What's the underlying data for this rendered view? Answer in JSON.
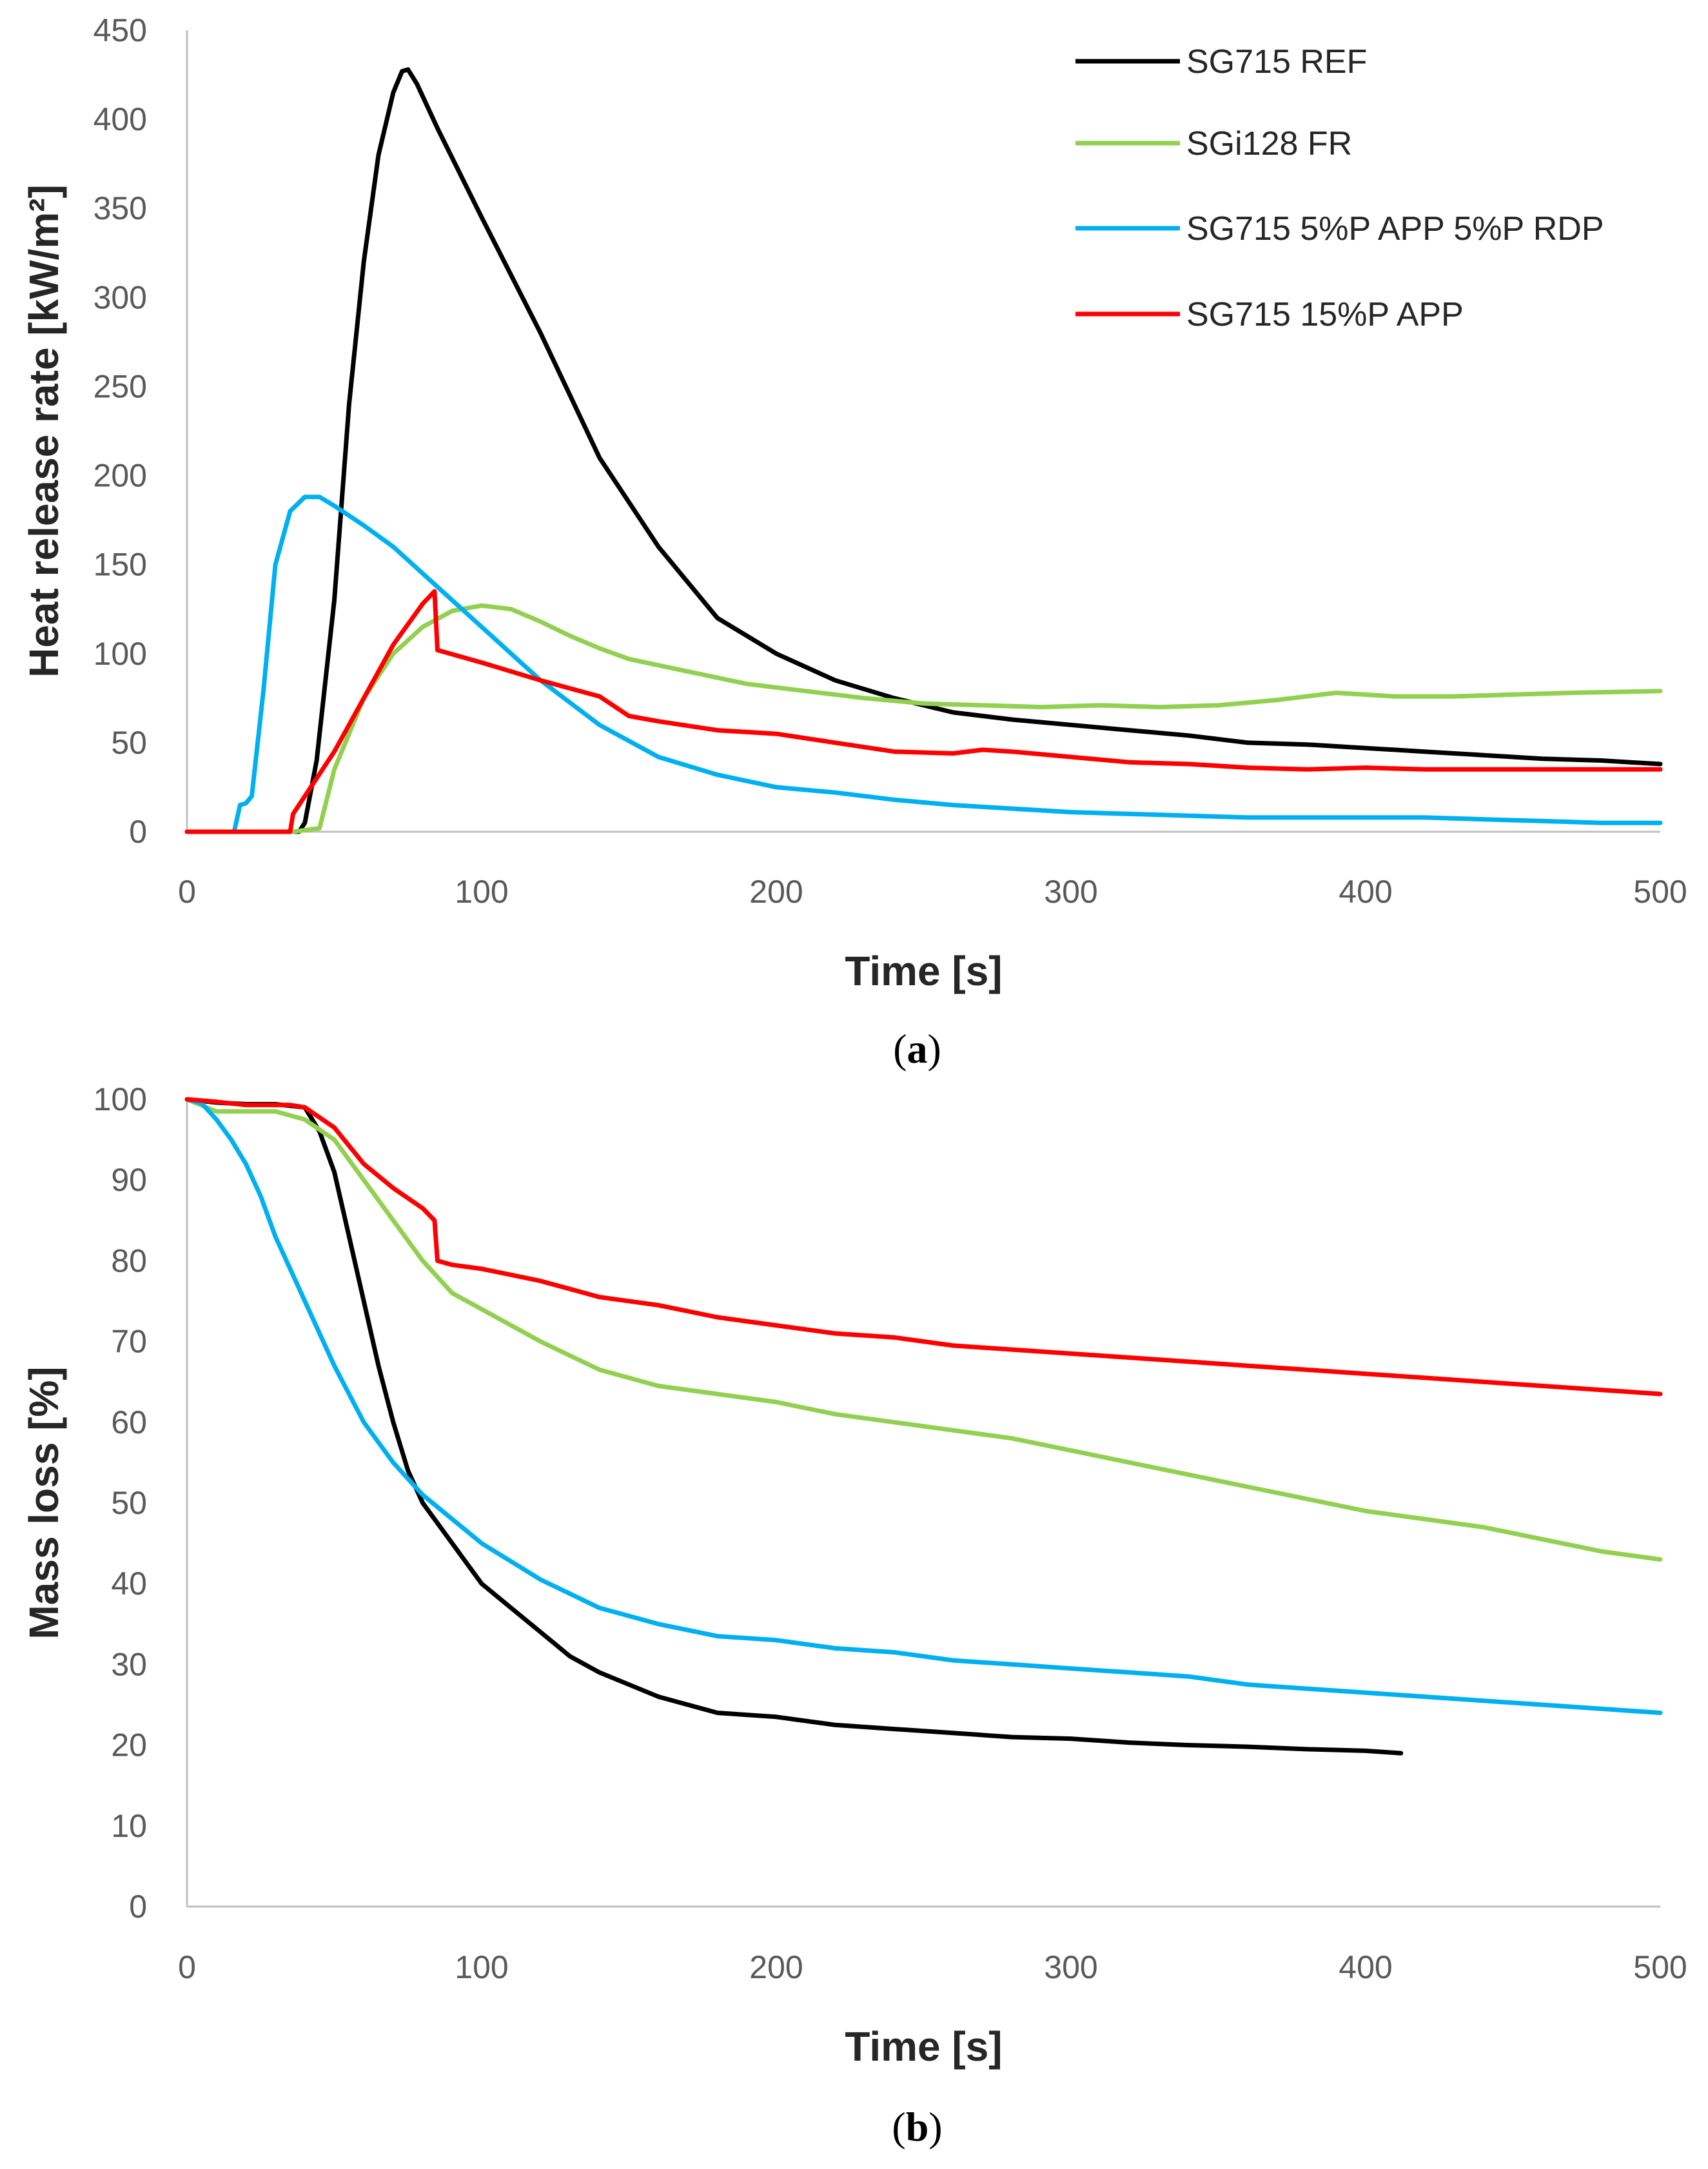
{
  "colors": {
    "SG715 REF": "#000000",
    "SGi128 FR": "#92d050",
    "SG715 5%P APP 5%P RDP": "#00b0f0",
    "SG715 15%P APP": "#ff0000"
  },
  "chart_data": [
    {
      "type": "line",
      "caption_prefix": "(",
      "caption_letter": "a",
      "caption_suffix": ")",
      "xlabel": "Time [s]",
      "ylabel": "Heat release rate [kW/m²]",
      "xlim": [
        0,
        500
      ],
      "ylim": [
        0,
        450
      ],
      "xticks": [
        0,
        100,
        200,
        300,
        400,
        500
      ],
      "yticks": [
        0,
        50,
        100,
        150,
        200,
        250,
        300,
        350,
        400,
        450
      ],
      "grid": false,
      "legend_position": "top-right",
      "legend": [
        "SG715 REF",
        "SGi128 FR",
        "SG715 5%P APP 5%P RDP",
        "SG715 15%P APP"
      ],
      "series": [
        {
          "name": "SG715 REF",
          "x": [
            0,
            38,
            40,
            44,
            50,
            55,
            60,
            65,
            70,
            73,
            75,
            78,
            85,
            100,
            120,
            140,
            160,
            180,
            200,
            220,
            240,
            260,
            280,
            300,
            320,
            340,
            360,
            380,
            400,
            420,
            440,
            460,
            480,
            500
          ],
          "y": [
            0,
            0,
            5,
            40,
            130,
            240,
            320,
            380,
            415,
            427,
            428,
            420,
            395,
            345,
            280,
            210,
            160,
            120,
            100,
            85,
            75,
            67,
            63,
            60,
            57,
            54,
            50,
            49,
            47,
            45,
            43,
            41,
            40,
            38
          ]
        },
        {
          "name": "SGi128 FR",
          "x": [
            0,
            36,
            45,
            50,
            60,
            70,
            80,
            90,
            100,
            110,
            120,
            130,
            140,
            150,
            170,
            190,
            210,
            230,
            250,
            270,
            290,
            310,
            330,
            350,
            370,
            390,
            410,
            430,
            450,
            470,
            500
          ],
          "y": [
            0,
            0,
            2,
            35,
            75,
            100,
            115,
            124,
            127,
            125,
            118,
            110,
            103,
            97,
            90,
            83,
            79,
            75,
            72,
            71,
            70,
            71,
            70,
            71,
            74,
            78,
            76,
            76,
            77,
            78,
            79
          ]
        },
        {
          "name": "SG715 5%P APP 5%P RDP",
          "x": [
            0,
            16,
            18,
            20,
            22,
            26,
            30,
            35,
            40,
            45,
            50,
            60,
            70,
            80,
            90,
            100,
            120,
            140,
            160,
            180,
            200,
            220,
            240,
            260,
            280,
            300,
            320,
            340,
            360,
            380,
            400,
            420,
            440,
            460,
            480,
            500
          ],
          "y": [
            0,
            0,
            15,
            16,
            20,
            80,
            150,
            180,
            188,
            188,
            183,
            172,
            160,
            145,
            130,
            115,
            85,
            60,
            42,
            32,
            25,
            22,
            18,
            15,
            13,
            11,
            10,
            9,
            8,
            8,
            8,
            8,
            7,
            6,
            5,
            5
          ]
        },
        {
          "name": "SG715 15%P APP",
          "x": [
            0,
            35,
            36,
            40,
            50,
            60,
            70,
            80,
            84,
            85,
            100,
            120,
            140,
            150,
            160,
            180,
            200,
            220,
            240,
            260,
            270,
            280,
            300,
            320,
            340,
            360,
            380,
            400,
            420,
            440,
            460,
            480,
            500
          ],
          "y": [
            0,
            0,
            10,
            20,
            45,
            75,
            105,
            128,
            135,
            102,
            95,
            85,
            76,
            65,
            62,
            57,
            55,
            50,
            45,
            44,
            46,
            45,
            42,
            39,
            38,
            36,
            35,
            36,
            35,
            35,
            35,
            35,
            35
          ]
        }
      ]
    },
    {
      "type": "line",
      "caption_prefix": "(",
      "caption_letter": "b",
      "caption_suffix": ")",
      "xlabel": "Time [s]",
      "ylabel": "Mass loss [%]",
      "xlim": [
        0,
        500
      ],
      "ylim": [
        0,
        100
      ],
      "xticks": [
        0,
        100,
        200,
        300,
        400,
        500
      ],
      "yticks": [
        0,
        10,
        20,
        30,
        40,
        50,
        60,
        70,
        80,
        90,
        100
      ],
      "grid": false,
      "series": [
        {
          "name": "SG715 REF",
          "x": [
            0,
            10,
            20,
            30,
            40,
            45,
            50,
            55,
            60,
            65,
            70,
            75,
            80,
            90,
            100,
            110,
            120,
            130,
            140,
            150,
            160,
            170,
            180,
            200,
            220,
            240,
            260,
            280,
            300,
            320,
            340,
            360,
            380,
            400,
            412
          ],
          "y": [
            100,
            99.6,
            99.4,
            99.4,
            99,
            96,
            91,
            83,
            75,
            67,
            60,
            54,
            50,
            45,
            40,
            37,
            34,
            31,
            29,
            27.5,
            26,
            25,
            24,
            23.5,
            22.5,
            22,
            21.5,
            21,
            20.8,
            20.3,
            20,
            19.8,
            19.5,
            19.3,
            19
          ]
        },
        {
          "name": "SGi128 FR",
          "x": [
            0,
            10,
            20,
            30,
            40,
            50,
            60,
            70,
            80,
            90,
            100,
            120,
            140,
            160,
            180,
            200,
            220,
            240,
            260,
            280,
            300,
            320,
            340,
            360,
            380,
            400,
            420,
            440,
            460,
            480,
            500
          ],
          "y": [
            100,
            98.5,
            98.5,
            98.5,
            97.5,
            95,
            90,
            85,
            80,
            76,
            74,
            70,
            66.5,
            64.5,
            63.5,
            62.5,
            61,
            60,
            59,
            58,
            56.5,
            55,
            53.5,
            52,
            50.5,
            49,
            48,
            47,
            45.5,
            44,
            43
          ]
        },
        {
          "name": "SG715 5%P APP 5%P RDP",
          "x": [
            0,
            5,
            10,
            15,
            20,
            25,
            30,
            35,
            40,
            50,
            60,
            70,
            80,
            90,
            100,
            120,
            140,
            160,
            180,
            200,
            220,
            240,
            260,
            280,
            300,
            320,
            340,
            360,
            380,
            400,
            420,
            440,
            460,
            480,
            500
          ],
          "y": [
            100,
            99.5,
            97.5,
            95,
            92,
            88,
            83,
            79,
            75,
            67,
            60,
            55,
            51,
            48,
            45,
            40.5,
            37,
            35,
            33.5,
            33,
            32,
            31.5,
            30.5,
            30,
            29.5,
            29,
            28.5,
            27.5,
            27,
            26.5,
            26,
            25.5,
            25,
            24.5,
            24
          ]
        },
        {
          "name": "SG715 15%P APP",
          "x": [
            0,
            10,
            20,
            30,
            35,
            40,
            50,
            60,
            70,
            80,
            84,
            85,
            90,
            100,
            120,
            140,
            160,
            180,
            200,
            220,
            240,
            260,
            280,
            300,
            320,
            340,
            360,
            380,
            400,
            420,
            440,
            460,
            480,
            500
          ],
          "y": [
            100,
            99.7,
            99.3,
            99.3,
            99.3,
            99,
            96.5,
            92,
            89,
            86.5,
            85,
            80,
            79.5,
            79,
            77.5,
            75.5,
            74.5,
            73,
            72,
            71,
            70.5,
            69.5,
            69,
            68.5,
            68,
            67.5,
            67,
            66.5,
            66,
            65.5,
            65,
            64.5,
            64,
            63.5
          ]
        }
      ]
    }
  ]
}
